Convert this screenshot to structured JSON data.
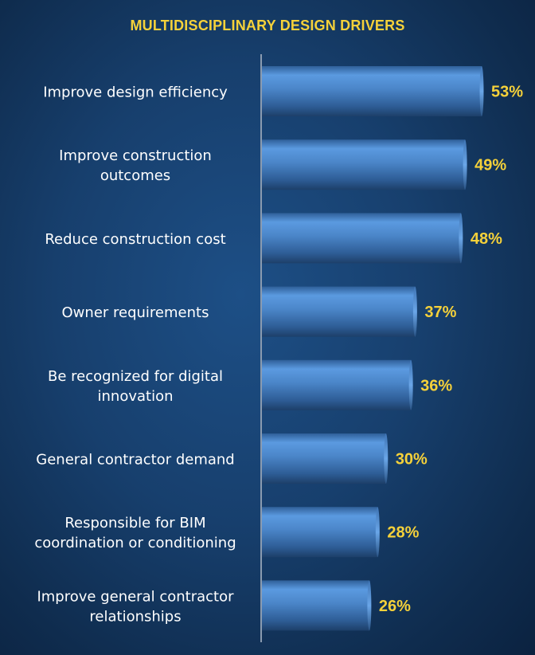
{
  "chart_data": {
    "type": "bar",
    "orientation": "horizontal",
    "title": "MULTIDISCIPLINARY DESIGN DRIVERS",
    "categories": [
      [
        "Improve design efficiency"
      ],
      [
        "Improve construction",
        "outcomes"
      ],
      [
        "Reduce construction cost"
      ],
      [
        "Owner requirements"
      ],
      [
        "Be recognized for digital",
        "innovation"
      ],
      [
        "General contractor demand"
      ],
      [
        "Responsible for BIM",
        "coordination or conditioning"
      ],
      [
        "Improve general contractor",
        "relationships"
      ]
    ],
    "values": [
      53,
      49,
      48,
      37,
      36,
      30,
      28,
      26
    ],
    "value_labels": [
      "53%",
      "49%",
      "48%",
      "37%",
      "36%",
      "30%",
      "28%",
      "26%"
    ],
    "xlim": [
      0,
      53
    ],
    "grid": false,
    "legend": "none",
    "colors": {
      "bar": "#4a86c8",
      "value_label": "#f5d13a",
      "category_label": "#ffffff",
      "title": "#f5d13a",
      "axis": "#8a9bb0"
    }
  }
}
